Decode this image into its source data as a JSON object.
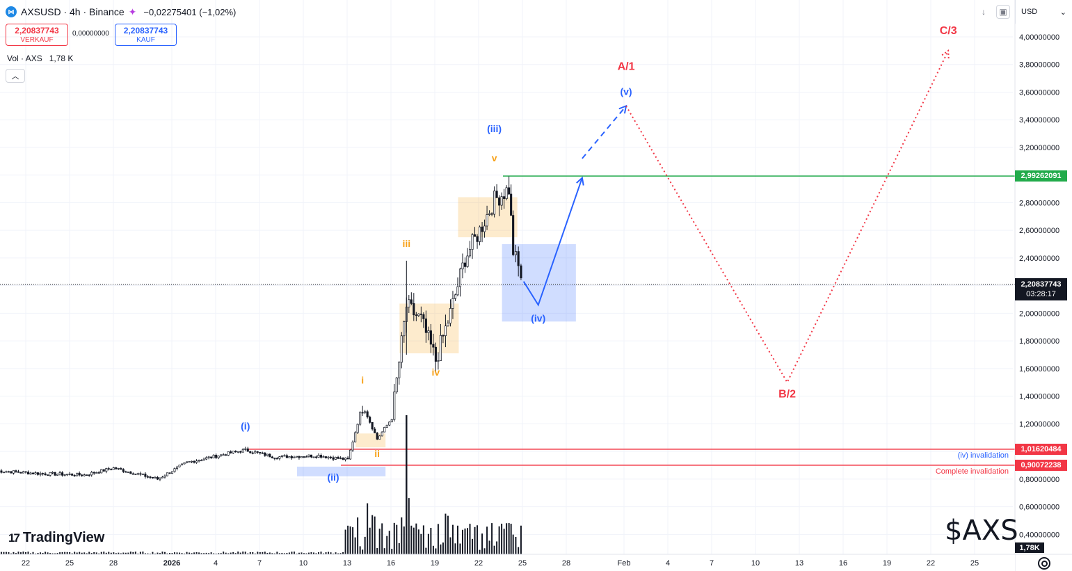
{
  "header": {
    "symbol": "AXSUSD · 4h · Binance",
    "change": "−0,02275401 (−1,02%)",
    "sell_price": "2,20837743",
    "sell_label": "VERKAUF",
    "spread": "0,00000000",
    "buy_price": "2,20837743",
    "buy_label": "KAUF",
    "volume_label": "Vol · AXS",
    "volume_value": "1,78 K"
  },
  "price_axis": {
    "currency": "USD",
    "ticks": [
      "4,00000000",
      "3,80000000",
      "3,60000000",
      "3,40000000",
      "3,20000000",
      "2,80000000",
      "2,60000000",
      "2,40000000",
      "2,00000000",
      "1,80000000",
      "1,60000000",
      "1,40000000",
      "1,20000000",
      "0,80000000",
      "0,60000000",
      "0,40000000"
    ],
    "level_tags": [
      {
        "text": "2,99262091",
        "color": "#22ab4b"
      },
      {
        "text": "1,01620484",
        "color": "#f23645"
      },
      {
        "text": "0,90072238",
        "color": "#f23645"
      }
    ],
    "current_price": "2,20837743",
    "countdown": "03:28:17",
    "volume_tag": "1,78K"
  },
  "time_axis": {
    "labels": [
      "22",
      "25",
      "28",
      "2026",
      "4",
      "7",
      "10",
      "13",
      "16",
      "19",
      "22",
      "25",
      "28",
      "Feb",
      "4",
      "7",
      "10",
      "13",
      "16",
      "19",
      "22",
      "25"
    ]
  },
  "invalidation": {
    "iv_text": "(iv) invalidation",
    "complete_text": "Complete invalidation"
  },
  "branding": {
    "logo_text": "TradingView",
    "watermark": "$AXS"
  },
  "colors": {
    "bull": "#131722",
    "resistance": "#22ab4b",
    "invalidation": "#f23645",
    "wave_blue": "#2962ff",
    "wave_orange": "#f7a21b",
    "wave_red": "#f23645"
  },
  "chart_data": {
    "type": "candlestick",
    "symbol": "AXSUSD",
    "interval": "4h",
    "exchange": "Binance",
    "x_range": [
      "Dec 22",
      "Feb 25"
    ],
    "ylim": [
      0.3,
      4.1
    ],
    "y_scale": "linear",
    "last_price": 2.20837743,
    "horizontal_levels": [
      {
        "price": 2.99262091,
        "color": "#22ab4b"
      },
      {
        "price": 1.01620484,
        "color": "#f23645",
        "label": "(iv) invalidation"
      },
      {
        "price": 0.90072238,
        "color": "#f23645",
        "label": "Complete invalidation"
      }
    ],
    "close_path": [
      {
        "date": "Dec 20",
        "close": 0.86
      },
      {
        "date": "Dec 23",
        "close": 0.84
      },
      {
        "date": "Dec 26",
        "close": 0.83
      },
      {
        "date": "Dec 28",
        "close": 0.88
      },
      {
        "date": "Dec 31",
        "close": 0.8
      },
      {
        "date": "Jan 2",
        "close": 0.92
      },
      {
        "date": "Jan 5",
        "close": 0.99
      },
      {
        "date": "Jan 6",
        "close": 1.01
      },
      {
        "date": "Jan 8",
        "close": 0.96
      },
      {
        "date": "Jan 11",
        "close": 0.97
      },
      {
        "date": "Jan 13",
        "close": 0.94
      },
      {
        "date": "Jan 14",
        "close": 1.34
      },
      {
        "date": "Jan 15",
        "close": 1.09
      },
      {
        "date": "Jan 16",
        "close": 1.24
      },
      {
        "date": "Jan 17",
        "close": 2.05
      },
      {
        "date": "Jan 18",
        "close": 1.95
      },
      {
        "date": "Jan 19",
        "close": 1.66
      },
      {
        "date": "Jan 20",
        "close": 2.0
      },
      {
        "date": "Jan 21",
        "close": 2.4
      },
      {
        "date": "Jan 22",
        "close": 2.6
      },
      {
        "date": "Jan 23",
        "close": 2.82
      },
      {
        "date": "Jan 24",
        "close": 2.9
      },
      {
        "date": "Jan 24",
        "close": 2.45
      },
      {
        "date": "Jan 25",
        "close": 2.21
      }
    ],
    "volume_peak_date": "Jan 17",
    "wave_labels": [
      {
        "text": "(i)",
        "color": "#2962ff",
        "date": "Jan 6",
        "price": 1.16
      },
      {
        "text": "(ii)",
        "color": "#2962ff",
        "date": "Jan 12",
        "price": 0.79
      },
      {
        "text": "i",
        "color": "#f7a21b",
        "date": "Jan 14",
        "price": 1.49
      },
      {
        "text": "ii",
        "color": "#f7a21b",
        "date": "Jan 15",
        "price": 0.96
      },
      {
        "text": "iii",
        "color": "#f7a21b",
        "date": "Jan 17",
        "price": 2.48
      },
      {
        "text": "iv",
        "color": "#f7a21b",
        "date": "Jan 19",
        "price": 1.55
      },
      {
        "text": "v",
        "color": "#f7a21b",
        "date": "Jan 23",
        "price": 3.1
      },
      {
        "text": "(iii)",
        "color": "#2962ff",
        "date": "Jan 23",
        "price": 3.31
      },
      {
        "text": "(iv)",
        "color": "#2962ff",
        "date": "Jan 26",
        "price": 1.94
      },
      {
        "text": "(v)",
        "color": "#2962ff",
        "date": "Feb 1",
        "price": 3.58
      },
      {
        "text": "A/1",
        "color": "#f23645",
        "date": "Feb 1",
        "price": 3.76
      },
      {
        "text": "B/2",
        "color": "#f23645",
        "date": "Feb 12",
        "price": 1.39
      },
      {
        "text": "C/3",
        "color": "#f23645",
        "date": "Feb 23",
        "price": 4.02
      }
    ],
    "projections": [
      {
        "style": "solid-arrow",
        "color": "#2962ff",
        "points": [
          {
            "date": "Jan 25",
            "price": 2.23
          },
          {
            "date": "Jan 26",
            "price": 2.06
          },
          {
            "date": "Jan 29",
            "price": 2.98
          }
        ]
      },
      {
        "style": "dashed-arrow",
        "color": "#2962ff",
        "points": [
          {
            "date": "Jan 29",
            "price": 3.12
          },
          {
            "date": "Feb 1",
            "price": 3.5
          }
        ]
      },
      {
        "style": "dotted-arrow",
        "color": "#f23645",
        "points": [
          {
            "date": "Feb 1",
            "price": 3.5
          },
          {
            "date": "Feb 12",
            "price": 1.5
          },
          {
            "date": "Feb 23",
            "price": 3.9
          }
        ]
      }
    ],
    "zones": [
      {
        "color": "#f7a21b",
        "from": "Jan 14",
        "to": "Jan 15",
        "low": 1.03,
        "high": 1.13
      },
      {
        "color": "#f7a21b",
        "from": "Jan 17",
        "to": "Jan 20",
        "low": 1.71,
        "high": 2.07
      },
      {
        "color": "#f7a21b",
        "from": "Jan 21",
        "to": "Jan 24",
        "low": 2.55,
        "high": 2.84
      },
      {
        "color": "#2962ff",
        "from": "Jan 24",
        "to": "Jan 28",
        "low": 1.94,
        "high": 2.5
      },
      {
        "color": "#2962ff",
        "from": "Jan 10",
        "to": "Jan 15",
        "low": 0.82,
        "high": 0.89
      }
    ]
  }
}
